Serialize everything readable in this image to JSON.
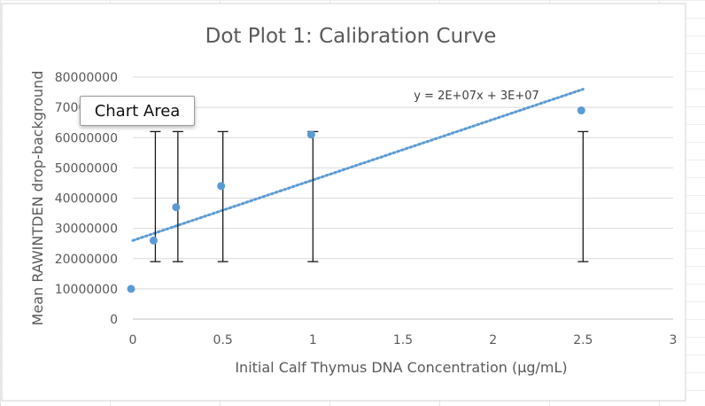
{
  "tooltip": {
    "text": "Chart Area"
  },
  "colors": {
    "series": "#5b9bd5",
    "trendline": "#5b9bd5",
    "errorbar": "#1a1a1a",
    "gridline": "#d9d9d9",
    "text": "#595959"
  },
  "chart_data": {
    "type": "scatter",
    "title": "Dot Plot 1: Calibration Curve",
    "xlabel": "Initial Calf Thymus DNA Concentration (µg/mL)",
    "ylabel": "Mean RAWINTDEN drop-background",
    "xlim": [
      0,
      3
    ],
    "ylim": [
      0,
      80000000
    ],
    "x_ticks": [
      0,
      0.5,
      1,
      1.5,
      2,
      2.5,
      3
    ],
    "x_tick_labels": [
      "0",
      "0.5",
      "1",
      "1.5",
      "2",
      "2.5",
      "3"
    ],
    "y_ticks": [
      0,
      10000000,
      20000000,
      30000000,
      40000000,
      50000000,
      60000000,
      70000000,
      80000000
    ],
    "y_tick_labels": [
      "0",
      "10000000",
      "20000000",
      "30000000",
      "40000000",
      "50000000",
      "60000000",
      "70000000",
      "80000000"
    ],
    "grid": "horizontal",
    "series": [
      {
        "x": [
          0,
          0.125,
          0.25,
          0.5,
          1,
          2.5
        ],
        "y": [
          10000000,
          26000000,
          37000000,
          44000000,
          61000000,
          69000000
        ],
        "error_bars": [
          {
            "x": 0.125,
            "low": 19000000,
            "high": 62000000
          },
          {
            "x": 0.25,
            "low": 19000000,
            "high": 62000000
          },
          {
            "x": 0.5,
            "low": 19000000,
            "high": 62000000
          },
          {
            "x": 1,
            "low": 19000000,
            "high": 62000000
          },
          {
            "x": 2.5,
            "low": 19000000,
            "high": 62000000
          }
        ]
      }
    ],
    "trendline": {
      "equation": "y = 2E+07x + 3E+07",
      "from": [
        0,
        26000000
      ],
      "to": [
        2.5,
        76000000
      ]
    }
  }
}
